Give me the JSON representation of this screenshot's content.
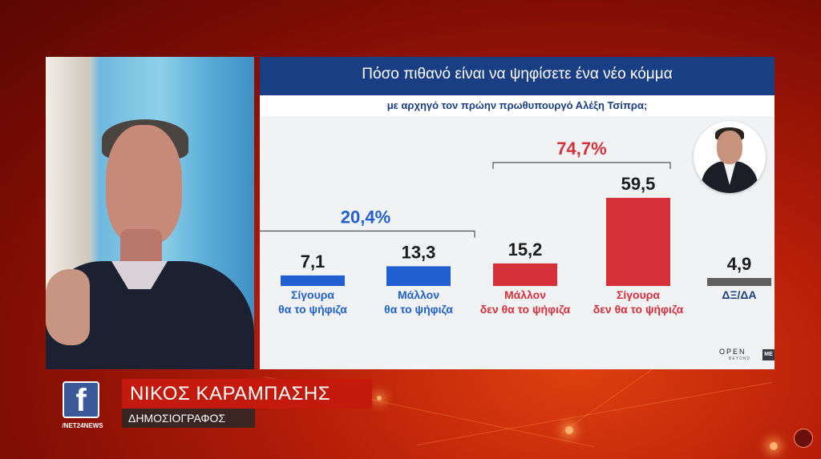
{
  "chart_data": {
    "type": "bar",
    "title": "Πόσο πιθανό είναι να ψηφίσετε ένα νέο κόμμα",
    "subtitle": "με αρχηγό τον πρώην πρωθυπουργό Αλέξη Τσίπρα;",
    "categories": [
      [
        "Σίγουρα",
        "θα το ψήφιζα"
      ],
      [
        "Μάλλον",
        "θα το ψήφιζα"
      ],
      [
        "Μάλλον",
        "δεν θα το ψήφιζα"
      ],
      [
        "Σίγουρα",
        "δεν θα το ψήφιζα"
      ],
      [
        "ΔΞ/ΔΑ"
      ]
    ],
    "values": [
      7.1,
      13.3,
      15.2,
      59.5,
      4.9
    ],
    "value_labels": [
      "7,1",
      "13,3",
      "15,2",
      "59,5",
      "4,9"
    ],
    "colors": [
      "#1f5fcf",
      "#1f5fcf",
      "#d6303a",
      "#d6303a",
      "#5f5f5f"
    ],
    "groups": [
      {
        "label": "20,4%",
        "from": 0,
        "to": 1,
        "color": "#1f5fcf"
      },
      {
        "label": "74,7%",
        "from": 2,
        "to": 3,
        "color": "#d6303a"
      }
    ],
    "grid": false,
    "legend": "none"
  },
  "branding": {
    "open_logo": "OPEN",
    "open_tagline": "BEYOND",
    "mega_logo": "ΜΕ"
  },
  "lower_third": {
    "name": "ΝΙΚΟΣ ΚΑΡΑΜΠΑΣΗΣ",
    "role": "ΔΗΜΟΣΙΟΓΡΑΦΟΣ",
    "social_icon": "facebook-icon",
    "social_letter": "f",
    "social_handle": "/NET24NEWS"
  },
  "theme": {
    "title_bar": "#1a3e84",
    "accent_red": "#c41a0e"
  }
}
